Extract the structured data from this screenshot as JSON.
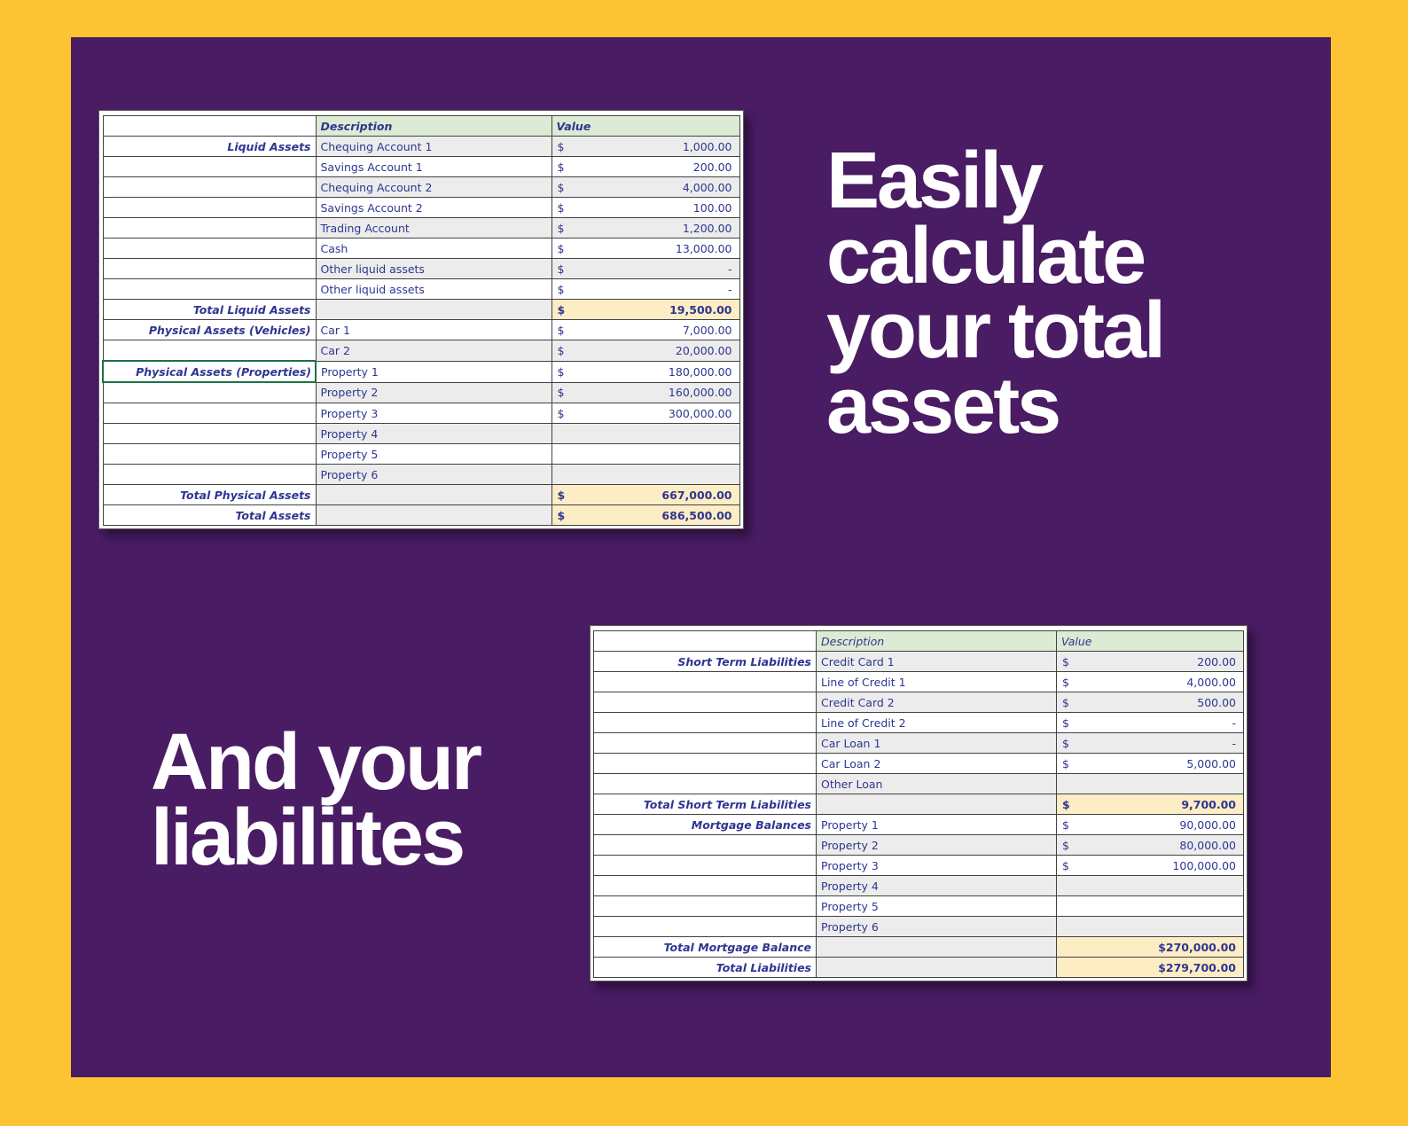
{
  "colors": {
    "frame_yellow": "#fcc433",
    "panel_purple": "#4a1c63",
    "table_header_green": "#dcebd3",
    "row_stripe_gray": "#ececec",
    "total_highlight_cream": "#fdedc4",
    "table_text_navy": "#2e3691",
    "selected_cell_border_green": "#1e7145",
    "headline_white": "#ffffff"
  },
  "headline_assets": {
    "lines": [
      "Easily",
      "calculate",
      "your total",
      "assets"
    ]
  },
  "headline_liabilities": {
    "lines": [
      "And your",
      "liabiliites"
    ]
  },
  "assets_table": {
    "header": {
      "label": "",
      "description": "Description",
      "value": "Value"
    },
    "rows": [
      {
        "label": "Liquid Assets",
        "desc": "Chequing Account 1",
        "cur": "$",
        "amt": "1,000.00",
        "shade": "gray"
      },
      {
        "label": "",
        "desc": "Savings Account 1",
        "cur": "$",
        "amt": "200.00",
        "shade": "white"
      },
      {
        "label": "",
        "desc": "Chequing Account 2",
        "cur": "$",
        "amt": "4,000.00",
        "shade": "gray"
      },
      {
        "label": "",
        "desc": "Savings Account 2",
        "cur": "$",
        "amt": "100.00",
        "shade": "white"
      },
      {
        "label": "",
        "desc": "Trading Account",
        "cur": "$",
        "amt": "1,200.00",
        "shade": "gray"
      },
      {
        "label": "",
        "desc": "Cash",
        "cur": "$",
        "amt": "13,000.00",
        "shade": "white"
      },
      {
        "label": "",
        "desc": "Other liquid assets",
        "cur": "$",
        "amt": "-",
        "shade": "gray"
      },
      {
        "label": "",
        "desc": "Other liquid assets",
        "cur": "$",
        "amt": "-",
        "shade": "white"
      },
      {
        "label": "Total Liquid Assets",
        "desc": "",
        "cur": "$",
        "amt": "19,500.00",
        "total": true
      },
      {
        "label": "Physical Assets (Vehicles)",
        "desc": "Car 1",
        "cur": "$",
        "amt": "7,000.00",
        "shade": "white"
      },
      {
        "label": "",
        "desc": "Car 2",
        "cur": "$",
        "amt": "20,000.00",
        "shade": "gray"
      },
      {
        "label": "Physical Assets (Properties)",
        "selected": true,
        "desc": "Property 1",
        "cur": "$",
        "amt": "180,000.00",
        "shade": "white"
      },
      {
        "label": "",
        "desc": "Property 2",
        "cur": "$",
        "amt": "160,000.00",
        "shade": "gray"
      },
      {
        "label": "",
        "desc": "Property 3",
        "cur": "$",
        "amt": "300,000.00",
        "shade": "white"
      },
      {
        "label": "",
        "desc": "Property 4",
        "cur": "",
        "amt": "",
        "shade": "gray"
      },
      {
        "label": "",
        "desc": "Property 5",
        "cur": "",
        "amt": "",
        "shade": "white"
      },
      {
        "label": "",
        "desc": "Property 6",
        "cur": "",
        "amt": "",
        "shade": "gray"
      },
      {
        "label": "Total Physical Assets",
        "desc": "",
        "cur": "$",
        "amt": "667,000.00",
        "total": true
      },
      {
        "label": "Total Assets",
        "desc": "",
        "cur": "$",
        "amt": "686,500.00",
        "total": true
      }
    ]
  },
  "liabilities_table": {
    "header": {
      "label": "",
      "description": "Description",
      "value": "Value"
    },
    "rows": [
      {
        "label": "Short Term Liabilities",
        "desc": "Credit Card 1",
        "cur": "$",
        "amt": "200.00",
        "shade": "gray"
      },
      {
        "label": "",
        "desc": "Line of Credit 1",
        "cur": "$",
        "amt": "4,000.00",
        "shade": "white"
      },
      {
        "label": "",
        "desc": "Credit Card 2",
        "cur": "$",
        "amt": "500.00",
        "shade": "gray"
      },
      {
        "label": "",
        "desc": "Line of Credit 2",
        "cur": "$",
        "amt": "-",
        "shade": "white"
      },
      {
        "label": "",
        "desc": "Car Loan 1",
        "cur": "$",
        "amt": "-",
        "shade": "gray"
      },
      {
        "label": "",
        "desc": "Car Loan 2",
        "cur": "$",
        "amt": "5,000.00",
        "shade": "white"
      },
      {
        "label": "",
        "desc": "Other Loan",
        "cur": "",
        "amt": "",
        "shade": "gray"
      },
      {
        "label": "Total Short Term Liabilities",
        "desc": "",
        "cur": "$",
        "amt": "9,700.00",
        "total": true
      },
      {
        "label": "Mortgage Balances",
        "desc": "Property 1",
        "cur": "$",
        "amt": "90,000.00",
        "shade": "white"
      },
      {
        "label": "",
        "desc": "Property 2",
        "cur": "$",
        "amt": "80,000.00",
        "shade": "gray"
      },
      {
        "label": "",
        "desc": "Property 3",
        "cur": "$",
        "amt": "100,000.00",
        "shade": "white"
      },
      {
        "label": "",
        "desc": "Property 4",
        "cur": "",
        "amt": "",
        "shade": "gray"
      },
      {
        "label": "",
        "desc": "Property 5",
        "cur": "",
        "amt": "",
        "shade": "white"
      },
      {
        "label": "",
        "desc": "Property 6",
        "cur": "",
        "amt": "",
        "shade": "gray"
      },
      {
        "label": "Total Mortgage Balance",
        "desc": "",
        "cur": "",
        "amt": "$270,000.00",
        "total": true,
        "combined": true
      },
      {
        "label": "Total Liabilities",
        "desc": "",
        "cur": "",
        "amt": "$279,700.00",
        "total": true,
        "combined": true
      }
    ]
  }
}
